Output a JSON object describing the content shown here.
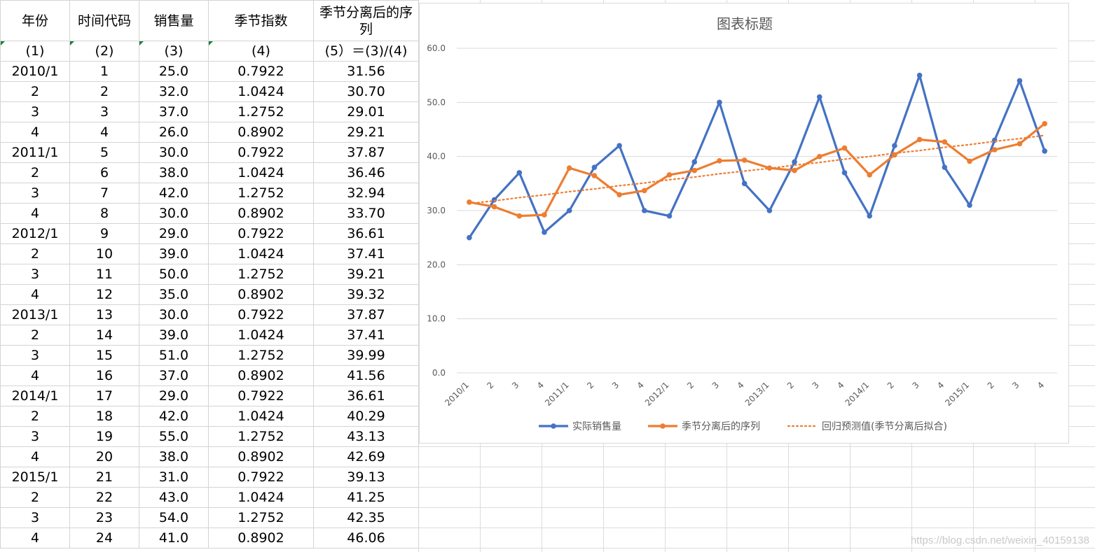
{
  "table": {
    "headers": [
      "年份",
      "时间代码",
      "销售量",
      "季节指数",
      "季节分离后的序列"
    ],
    "subheaders": [
      "(1)",
      "(2)",
      "(3)",
      "(4)",
      "(5）＝(3)/(4)"
    ],
    "rows": [
      [
        "2010/1",
        "1",
        "25.0",
        "0.7922",
        "31.56"
      ],
      [
        "2",
        "2",
        "32.0",
        "1.0424",
        "30.70"
      ],
      [
        "3",
        "3",
        "37.0",
        "1.2752",
        "29.01"
      ],
      [
        "4",
        "4",
        "26.0",
        "0.8902",
        "29.21"
      ],
      [
        "2011/1",
        "5",
        "30.0",
        "0.7922",
        "37.87"
      ],
      [
        "2",
        "6",
        "38.0",
        "1.0424",
        "36.46"
      ],
      [
        "3",
        "7",
        "42.0",
        "1.2752",
        "32.94"
      ],
      [
        "4",
        "8",
        "30.0",
        "0.8902",
        "33.70"
      ],
      [
        "2012/1",
        "9",
        "29.0",
        "0.7922",
        "36.61"
      ],
      [
        "2",
        "10",
        "39.0",
        "1.0424",
        "37.41"
      ],
      [
        "3",
        "11",
        "50.0",
        "1.2752",
        "39.21"
      ],
      [
        "4",
        "12",
        "35.0",
        "0.8902",
        "39.32"
      ],
      [
        "2013/1",
        "13",
        "30.0",
        "0.7922",
        "37.87"
      ],
      [
        "2",
        "14",
        "39.0",
        "1.0424",
        "37.41"
      ],
      [
        "3",
        "15",
        "51.0",
        "1.2752",
        "39.99"
      ],
      [
        "4",
        "16",
        "37.0",
        "0.8902",
        "41.56"
      ],
      [
        "2014/1",
        "17",
        "29.0",
        "0.7922",
        "36.61"
      ],
      [
        "2",
        "18",
        "42.0",
        "1.0424",
        "40.29"
      ],
      [
        "3",
        "19",
        "55.0",
        "1.2752",
        "43.13"
      ],
      [
        "4",
        "20",
        "38.0",
        "0.8902",
        "42.69"
      ],
      [
        "2015/1",
        "21",
        "31.0",
        "0.7922",
        "39.13"
      ],
      [
        "2",
        "22",
        "43.0",
        "1.0424",
        "41.25"
      ],
      [
        "3",
        "23",
        "54.0",
        "1.2752",
        "42.35"
      ],
      [
        "4",
        "24",
        "41.0",
        "0.8902",
        "46.06"
      ]
    ]
  },
  "chart_data": {
    "type": "line",
    "title": "图表标题",
    "categories": [
      "2010/1",
      "2",
      "3",
      "4",
      "2011/1",
      "2",
      "3",
      "4",
      "2012/1",
      "2",
      "3",
      "4",
      "2013/1",
      "2",
      "3",
      "4",
      "2014/1",
      "2",
      "3",
      "4",
      "2015/1",
      "2",
      "3",
      "4"
    ],
    "series": [
      {
        "name": "实际销售量",
        "color": "#4472c4",
        "style": "solid-marker",
        "values": [
          25,
          32,
          37,
          26,
          30,
          38,
          42,
          30,
          29,
          39,
          50,
          35,
          30,
          39,
          51,
          37,
          29,
          42,
          55,
          38,
          31,
          43,
          54,
          41
        ]
      },
      {
        "name": "季节分离后的序列",
        "color": "#ed7d31",
        "style": "solid-marker",
        "values": [
          31.56,
          30.7,
          29.01,
          29.21,
          37.87,
          36.46,
          32.94,
          33.7,
          36.61,
          37.41,
          39.21,
          39.32,
          37.87,
          37.41,
          39.99,
          41.56,
          36.61,
          40.29,
          43.13,
          42.69,
          39.13,
          41.25,
          42.35,
          46.06
        ]
      },
      {
        "name": "回归预测值(季节分离后拟合)",
        "color": "#ed7d31",
        "style": "dotted",
        "values": [
          31.3,
          31.8,
          32.4,
          32.9,
          33.5,
          34.0,
          34.6,
          35.1,
          35.7,
          36.2,
          36.8,
          37.3,
          37.8,
          38.4,
          38.9,
          39.5,
          40.0,
          40.6,
          41.1,
          41.7,
          42.2,
          42.8,
          43.3,
          43.9
        ]
      }
    ],
    "ylim": [
      0,
      60
    ],
    "yticks": [
      "0.0",
      "10.0",
      "20.0",
      "30.0",
      "40.0",
      "50.0",
      "60.0"
    ],
    "grid": true,
    "legend_position": "bottom"
  },
  "watermark": "https://blog.csdn.net/weixin_40159138"
}
